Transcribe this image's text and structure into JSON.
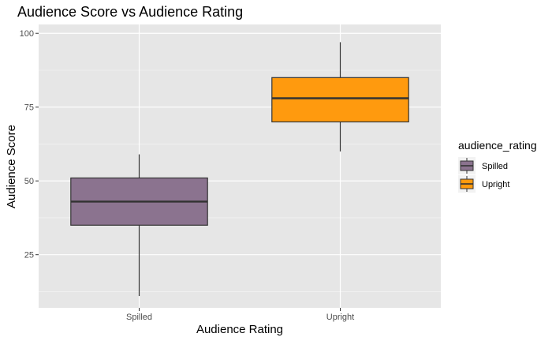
{
  "chart_data": {
    "type": "box",
    "title": "Audience Score vs Audience Rating",
    "xlabel": "Audience Rating",
    "ylabel": "Audience Score",
    "ylim": [
      7,
      103
    ],
    "yticks": [
      25,
      50,
      75,
      100
    ],
    "categories": [
      "Spilled",
      "Upright"
    ],
    "boxes": [
      {
        "category": "Spilled",
        "whisker_low": 11,
        "q1": 35,
        "median": 43,
        "q3": 51,
        "whisker_high": 59,
        "color": "#8b738f"
      },
      {
        "category": "Upright",
        "whisker_low": 60,
        "q1": 70,
        "median": 78,
        "q3": 85,
        "whisker_high": 97,
        "color": "#ff9a0e"
      }
    ],
    "grid": true,
    "panel_background": "#e6e6e6",
    "legend": {
      "title": "audience_rating",
      "position": "right",
      "entries": [
        "Spilled",
        "Upright"
      ]
    }
  }
}
